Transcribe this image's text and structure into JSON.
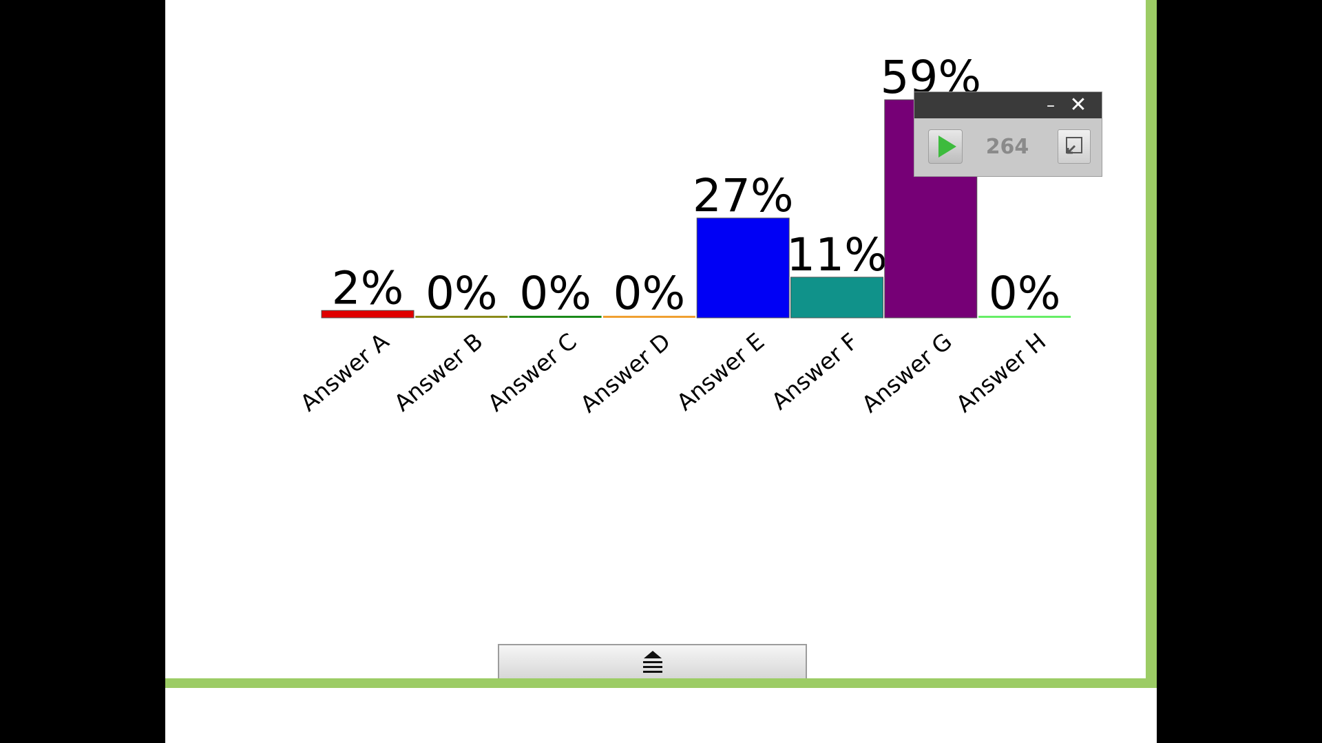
{
  "colors": {
    "background": "#000000",
    "stage": "#ffffff",
    "frame_green": "#9ccc65",
    "titlebar": "#3a3a3a",
    "panel": "#c9c9c9"
  },
  "chart_data": {
    "type": "bar",
    "categories": [
      "Answer A",
      "Answer B",
      "Answer C",
      "Answer D",
      "Answer E",
      "Answer F",
      "Answer G",
      "Answer H"
    ],
    "values": [
      2,
      0,
      0,
      0,
      27,
      11,
      59,
      0
    ],
    "value_labels": [
      "2%",
      "0%",
      "0%",
      "0%",
      "27%",
      "11%",
      "59%",
      "0%"
    ],
    "colors": [
      "#e00000",
      "#8b8b1a",
      "#1a8a1a",
      "#f0a030",
      "#0000f5",
      "#10928a",
      "#760076",
      "#66ee66"
    ],
    "ylim": [
      0,
      59
    ],
    "grid": false,
    "legend": "none",
    "title": "",
    "xlabel": "",
    "ylabel": ""
  },
  "mini_panel": {
    "minimize_icon": "minimize-icon",
    "minimize_glyph": "–",
    "close_icon": "close-icon",
    "close_glyph": "✕",
    "play_icon": "play-icon",
    "count": "264",
    "expand_icon": "expand-icon"
  },
  "tray": {
    "icon": "eject-icon"
  }
}
